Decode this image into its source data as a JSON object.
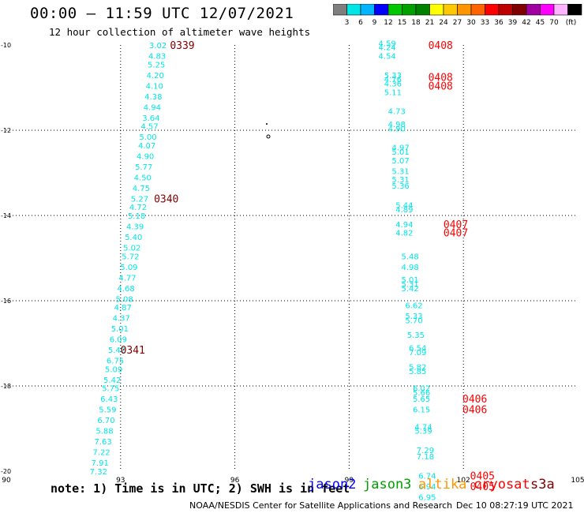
{
  "header": {
    "title": "00:00 – 11:59 UTC 12/07/2021",
    "subtitle": "12 hour collection of altimeter wave heights"
  },
  "colorbar": {
    "unit": "(ft)",
    "labels": [
      "3",
      "6",
      "9",
      "12",
      "15",
      "18",
      "21",
      "24",
      "27",
      "30",
      "33",
      "36",
      "39",
      "42",
      "45",
      "70"
    ],
    "colors": [
      "#7f7f7f",
      "#00e6e6",
      "#00b4ff",
      "#0000ff",
      "#00c800",
      "#00a000",
      "#008200",
      "#ffff00",
      "#ffc800",
      "#ff9600",
      "#ff6400",
      "#ff0000",
      "#be0000",
      "#800000",
      "#a000a0",
      "#ff00ff",
      "#ffb4ff",
      "#000000"
    ]
  },
  "footer": {
    "note": "note: 1) Time is in UTC; 2) SWH is in feet",
    "satellites": [
      {
        "name": "jason2",
        "color": "#0000ff"
      },
      {
        "name": "jason3",
        "color": "#00a000"
      },
      {
        "name": "altika",
        "color": "#ff9600"
      },
      {
        "name": "cryosat",
        "color": "#ff0000"
      },
      {
        "name": "s3a",
        "color": "#800000"
      }
    ],
    "credit": "NOAA/NESDIS Center for Satellite Applications and Research",
    "timestamp": "Dec 10 08:27:19 UTC 2021"
  },
  "chart_data": {
    "type": "scatter",
    "title": "12 hour collection of altimeter wave heights",
    "xlim": [
      90,
      105
    ],
    "ylim": [
      -20,
      -10
    ],
    "xticks": [
      "90",
      "93",
      "96",
      "99",
      "102",
      "105"
    ],
    "yticks": [
      "-10",
      "-12",
      "-14",
      "-16",
      "-18",
      "-20"
    ],
    "grid": true,
    "point_color": "#00e6e6",
    "tracks": [
      {
        "name": "west-track",
        "points": [
          {
            "x": 93.98,
            "y": -10.0,
            "v": "3.02"
          },
          {
            "x": 93.96,
            "y": -10.25,
            "v": "4.83"
          },
          {
            "x": 93.94,
            "y": -10.45,
            "v": "5.25"
          },
          {
            "x": 93.91,
            "y": -10.7,
            "v": "4.20"
          },
          {
            "x": 93.89,
            "y": -10.95,
            "v": "4.10"
          },
          {
            "x": 93.86,
            "y": -11.2,
            "v": "4.38"
          },
          {
            "x": 93.83,
            "y": -11.45,
            "v": "4.94"
          },
          {
            "x": 93.8,
            "y": -11.7,
            "v": "3.64"
          },
          {
            "x": 93.76,
            "y": -11.9,
            "v": "4.57"
          },
          {
            "x": 93.72,
            "y": -12.15,
            "v": "5.00"
          },
          {
            "x": 93.69,
            "y": -12.35,
            "v": "4.07"
          },
          {
            "x": 93.65,
            "y": -12.6,
            "v": "4.90"
          },
          {
            "x": 93.61,
            "y": -12.85,
            "v": "5.77"
          },
          {
            "x": 93.58,
            "y": -13.1,
            "v": "4.50"
          },
          {
            "x": 93.54,
            "y": -13.35,
            "v": "4.75"
          },
          {
            "x": 93.5,
            "y": -13.6,
            "v": "5.27"
          },
          {
            "x": 93.46,
            "y": -13.8,
            "v": "4.72"
          },
          {
            "x": 93.42,
            "y": -14.0,
            "v": "5.18"
          },
          {
            "x": 93.38,
            "y": -14.25,
            "v": "4.39"
          },
          {
            "x": 93.34,
            "y": -14.5,
            "v": "5.40"
          },
          {
            "x": 93.3,
            "y": -14.75,
            "v": "5.02"
          },
          {
            "x": 93.26,
            "y": -14.95,
            "v": "5.72"
          },
          {
            "x": 93.22,
            "y": -15.2,
            "v": "5.09"
          },
          {
            "x": 93.18,
            "y": -15.45,
            "v": "4.77"
          },
          {
            "x": 93.14,
            "y": -15.7,
            "v": "4.68"
          },
          {
            "x": 93.1,
            "y": -15.95,
            "v": "5.08"
          },
          {
            "x": 93.06,
            "y": -16.15,
            "v": "4.87"
          },
          {
            "x": 93.02,
            "y": -16.4,
            "v": "4.37"
          },
          {
            "x": 92.98,
            "y": -16.65,
            "v": "5.01"
          },
          {
            "x": 92.94,
            "y": -16.9,
            "v": "6.09"
          },
          {
            "x": 92.9,
            "y": -17.15,
            "v": "5.42"
          },
          {
            "x": 92.86,
            "y": -17.4,
            "v": "6.75"
          },
          {
            "x": 92.82,
            "y": -17.6,
            "v": "5.09"
          },
          {
            "x": 92.78,
            "y": -17.85,
            "v": "5.42"
          },
          {
            "x": 92.74,
            "y": -18.05,
            "v": "5.75"
          },
          {
            "x": 92.7,
            "y": -18.3,
            "v": "6.43"
          },
          {
            "x": 92.66,
            "y": -18.55,
            "v": "5.59"
          },
          {
            "x": 92.62,
            "y": -18.8,
            "v": "6.70"
          },
          {
            "x": 92.58,
            "y": -19.05,
            "v": "5.88"
          },
          {
            "x": 92.54,
            "y": -19.3,
            "v": "7.63"
          },
          {
            "x": 92.5,
            "y": -19.55,
            "v": "7.22"
          },
          {
            "x": 92.46,
            "y": -19.8,
            "v": "7.91"
          },
          {
            "x": 92.42,
            "y": -20.0,
            "v": "7.32"
          }
        ],
        "time_labels": [
          {
            "x": 94.62,
            "y": -10.0,
            "t": "0339",
            "color": "#800000"
          },
          {
            "x": 94.2,
            "y": -13.6,
            "t": "0340",
            "color": "#800000"
          },
          {
            "x": 93.32,
            "y": -17.15,
            "t": "0341",
            "color": "#800000"
          }
        ]
      },
      {
        "name": "east-track",
        "points": [
          {
            "x": 100.0,
            "y": -9.95,
            "v": "4.59"
          },
          {
            "x": 100.0,
            "y": -10.05,
            "v": "4.24"
          },
          {
            "x": 100.0,
            "y": -10.25,
            "v": "4.54"
          },
          {
            "x": 100.15,
            "y": -10.7,
            "v": "5.33"
          },
          {
            "x": 100.15,
            "y": -10.8,
            "v": "4.76"
          },
          {
            "x": 100.15,
            "y": -10.9,
            "v": "4.36"
          },
          {
            "x": 100.15,
            "y": -11.1,
            "v": "5.11"
          },
          {
            "x": 100.25,
            "y": -11.55,
            "v": "4.73"
          },
          {
            "x": 100.25,
            "y": -11.85,
            "v": "4.98"
          },
          {
            "x": 100.25,
            "y": -11.95,
            "v": "4.90"
          },
          {
            "x": 100.35,
            "y": -12.4,
            "v": "4.97"
          },
          {
            "x": 100.35,
            "y": -12.5,
            "v": "5.01"
          },
          {
            "x": 100.35,
            "y": -12.7,
            "v": "5.07"
          },
          {
            "x": 100.35,
            "y": -12.95,
            "v": "5.31"
          },
          {
            "x": 100.35,
            "y": -13.15,
            "v": "5.31"
          },
          {
            "x": 100.35,
            "y": -13.3,
            "v": "5.36"
          },
          {
            "x": 100.45,
            "y": -13.75,
            "v": "5.44"
          },
          {
            "x": 100.45,
            "y": -13.85,
            "v": "4.89"
          },
          {
            "x": 100.45,
            "y": -14.2,
            "v": "4.94"
          },
          {
            "x": 100.45,
            "y": -14.4,
            "v": "4.82"
          },
          {
            "x": 100.6,
            "y": -14.95,
            "v": "5.48"
          },
          {
            "x": 100.6,
            "y": -15.2,
            "v": "4.98"
          },
          {
            "x": 100.6,
            "y": -15.5,
            "v": "5.01"
          },
          {
            "x": 100.6,
            "y": -15.6,
            "v": "5.31"
          },
          {
            "x": 100.6,
            "y": -15.7,
            "v": "5.42"
          },
          {
            "x": 100.7,
            "y": -16.1,
            "v": "6.62"
          },
          {
            "x": 100.7,
            "y": -16.35,
            "v": "5.33"
          },
          {
            "x": 100.7,
            "y": -16.45,
            "v": "5.70"
          },
          {
            "x": 100.75,
            "y": -16.8,
            "v": "5.35"
          },
          {
            "x": 100.8,
            "y": -17.1,
            "v": "6.54"
          },
          {
            "x": 100.8,
            "y": -17.2,
            "v": "7.09"
          },
          {
            "x": 100.8,
            "y": -17.55,
            "v": "5.82"
          },
          {
            "x": 100.8,
            "y": -17.65,
            "v": "5.85"
          },
          {
            "x": 100.9,
            "y": -18.05,
            "v": "6.02"
          },
          {
            "x": 100.9,
            "y": -18.15,
            "v": "5.66"
          },
          {
            "x": 100.9,
            "y": -18.3,
            "v": "5.65"
          },
          {
            "x": 100.9,
            "y": -18.55,
            "v": "6.15"
          },
          {
            "x": 100.95,
            "y": -18.95,
            "v": "4.74"
          },
          {
            "x": 100.95,
            "y": -19.05,
            "v": "5.39"
          },
          {
            "x": 101.0,
            "y": -19.5,
            "v": "7.29"
          },
          {
            "x": 101.0,
            "y": -19.65,
            "v": "7.18"
          },
          {
            "x": 101.05,
            "y": -20.1,
            "v": "6.74"
          },
          {
            "x": 101.05,
            "y": -20.35,
            "v": "6.94"
          },
          {
            "x": 101.05,
            "y": -20.6,
            "v": "6.95"
          }
        ],
        "time_labels": [
          {
            "x": 101.4,
            "y": -10.0,
            "t": "0408",
            "color": "#ff0000"
          },
          {
            "x": 101.4,
            "y": -10.75,
            "v2": 0,
            "t": "0408",
            "color": "#ff0000"
          },
          {
            "x": 101.4,
            "y": -10.95,
            "t": "0408",
            "color": "#ff0000"
          },
          {
            "x": 101.8,
            "y": -14.2,
            "t": "0407",
            "color": "#ff0000"
          },
          {
            "x": 101.8,
            "y": -14.4,
            "t": "0407",
            "color": "#ff0000"
          },
          {
            "x": 102.3,
            "y": -18.3,
            "t": "0406",
            "color": "#ff0000"
          },
          {
            "x": 102.3,
            "y": -18.55,
            "t": "0406",
            "color": "#ff0000"
          },
          {
            "x": 102.5,
            "y": -20.1,
            "t": "0405",
            "color": "#ff0000"
          },
          {
            "x": 102.5,
            "y": -20.35,
            "t": "0405",
            "color": "#ff0000"
          }
        ]
      }
    ]
  }
}
